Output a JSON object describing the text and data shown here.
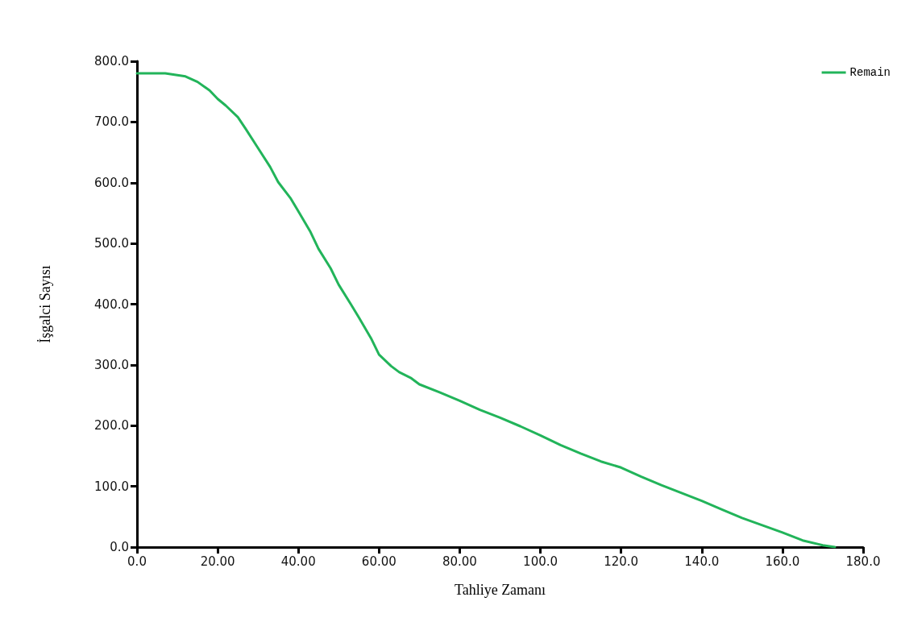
{
  "chart_data": {
    "type": "line",
    "xlabel": "Tahliye Zamanı",
    "ylabel": "İşgalci Sayısı",
    "xlim": [
      0,
      180
    ],
    "ylim": [
      0,
      800
    ],
    "xticks": [
      {
        "value": 0,
        "label": "0.0"
      },
      {
        "value": 20,
        "label": "20.00"
      },
      {
        "value": 40,
        "label": "40.00"
      },
      {
        "value": 60,
        "label": "60.00"
      },
      {
        "value": 80,
        "label": "80.00"
      },
      {
        "value": 100,
        "label": "100.0"
      },
      {
        "value": 120,
        "label": "120.0"
      },
      {
        "value": 140,
        "label": "140.0"
      },
      {
        "value": 160,
        "label": "160.0"
      },
      {
        "value": 180,
        "label": "180.0"
      }
    ],
    "yticks": [
      {
        "value": 0,
        "label": "0.0"
      },
      {
        "value": 100,
        "label": "100.0"
      },
      {
        "value": 200,
        "label": "200.0"
      },
      {
        "value": 300,
        "label": "300.0"
      },
      {
        "value": 400,
        "label": "400.0"
      },
      {
        "value": 500,
        "label": "500.0"
      },
      {
        "value": 600,
        "label": "600.0"
      },
      {
        "value": 700,
        "label": "700.0"
      },
      {
        "value": 800,
        "label": "800.0"
      }
    ],
    "grid": false,
    "legend": "top right",
    "marker": "none",
    "line_style": "solid",
    "series": [
      {
        "name": "Remain",
        "color": "#22b45a",
        "x": [
          0,
          7,
          10,
          12,
          15,
          18,
          20,
          22,
          25,
          27,
          30,
          33,
          35,
          38,
          40,
          43,
          45,
          48,
          50,
          53,
          55,
          58,
          60,
          63,
          65,
          68,
          70,
          75,
          80,
          85,
          90,
          95,
          100,
          105,
          110,
          115,
          120,
          125,
          130,
          135,
          140,
          145,
          150,
          155,
          160,
          165,
          170,
          173
        ],
        "values": [
          780,
          780,
          777,
          775,
          766,
          752,
          738,
          727,
          708,
          688,
          657,
          626,
          601,
          575,
          553,
          519,
          491,
          459,
          432,
          400,
          378,
          344,
          317,
          298,
          288,
          278,
          268,
          255,
          241,
          226,
          213,
          199,
          184,
          168,
          154,
          141,
          131,
          116,
          102,
          89,
          76,
          62,
          48,
          36,
          24,
          11,
          3,
          0
        ]
      }
    ]
  }
}
